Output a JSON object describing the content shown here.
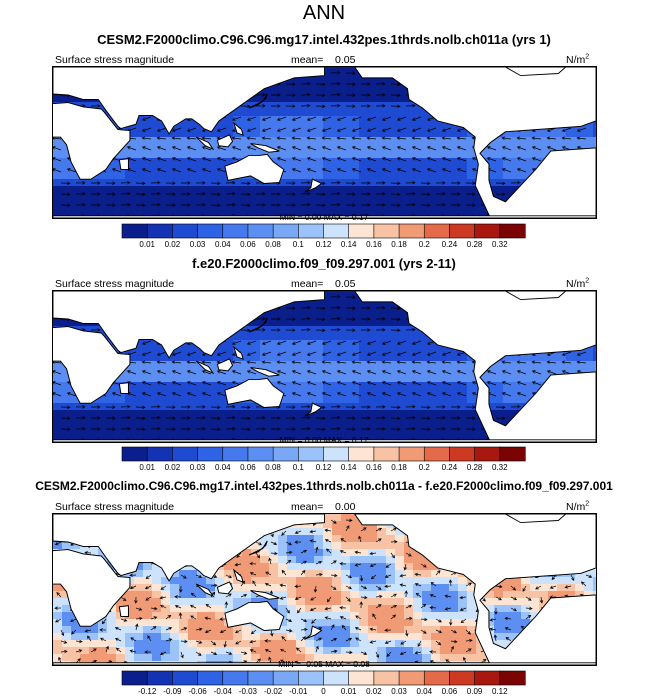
{
  "title": "ANN",
  "panels": [
    {
      "title": "CESM2.F2000climo.C96.C96.mg17.intel.432pes.1thrds.nolb.ch011a (yrs 1)",
      "left_label": "Surface stress magnitude",
      "mean_label": "mean=",
      "mean_value": "0.05",
      "units": "N/m",
      "units_exp": "2",
      "min_max": "MIN =   0.00 MAX =   0.17",
      "colorbar": {
        "ticks": [
          "0.01",
          "0.02",
          "0.03",
          "0.04",
          "0.06",
          "0.08",
          "0.1",
          "0.12",
          "0.14",
          "0.16",
          "0.18",
          "0.2",
          "0.24",
          "0.28",
          "0.32"
        ],
        "colors": [
          "#0a1e8c",
          "#1432b4",
          "#1e4bd2",
          "#2f63e6",
          "#4678ee",
          "#5d8ff2",
          "#79a9f6",
          "#9bc2f9",
          "#cde2fb",
          "#fde4d3",
          "#f8c2a4",
          "#f19b76",
          "#e46a4a",
          "#cd3a24",
          "#a8180e",
          "#7a0403"
        ]
      }
    },
    {
      "title": "f.e20.F2000climo.f09_f09.297.001 (yrs 2-11)",
      "left_label": "Surface stress magnitude",
      "mean_label": "mean=",
      "mean_value": "0.05",
      "units": "N/m",
      "units_exp": "2",
      "min_max": "MIN =   0.00 MAX =   0.17",
      "colorbar": {
        "ticks": [
          "0.01",
          "0.02",
          "0.03",
          "0.04",
          "0.06",
          "0.08",
          "0.1",
          "0.12",
          "0.14",
          "0.16",
          "0.18",
          "0.2",
          "0.24",
          "0.28",
          "0.32"
        ],
        "colors": [
          "#0a1e8c",
          "#1432b4",
          "#1e4bd2",
          "#2f63e6",
          "#4678ee",
          "#5d8ff2",
          "#79a9f6",
          "#9bc2f9",
          "#cde2fb",
          "#fde4d3",
          "#f8c2a4",
          "#f19b76",
          "#e46a4a",
          "#cd3a24",
          "#a8180e",
          "#7a0403"
        ]
      }
    },
    {
      "title": "CESM2.F2000climo.C96.C96.mg17.intel.432pes.1thrds.nolb.ch011a - f.e20.F2000climo.f09_f09.297.001",
      "left_label": "Surface stress magnitude",
      "mean_label": "mean=",
      "mean_value": "0.00",
      "units": "N/m",
      "units_exp": "2",
      "min_max": "MIN =  -0.05 MAX =   0.08",
      "colorbar": {
        "ticks": [
          "-0.12",
          "-0.09",
          "-0.06",
          "-0.04",
          "-0.03",
          "-0.02",
          "-0.01",
          "0",
          "0.01",
          "0.02",
          "0.03",
          "0.04",
          "0.06",
          "0.09",
          "0.12"
        ],
        "colors": [
          "#0a1e8c",
          "#1432b4",
          "#1e4bd2",
          "#2f63e6",
          "#4678ee",
          "#5d8ff2",
          "#79a9f6",
          "#9bc2f9",
          "#cde2fb",
          "#fde4d3",
          "#f8c2a4",
          "#f19b76",
          "#e46a4a",
          "#cd3a24",
          "#a8180e",
          "#7a0403"
        ]
      }
    }
  ],
  "chart_data": [
    {
      "type": "heatmap",
      "title": "CESM2.F2000climo.C96.C96.mg17.intel.432pes.1thrds.nolb.ch011a (yrs 1)",
      "variable": "Surface stress magnitude",
      "units": "N/m2",
      "mean": 0.05,
      "min": 0.0,
      "max": 0.17,
      "colorbar_levels": [
        0.01,
        0.02,
        0.03,
        0.04,
        0.06,
        0.08,
        0.1,
        0.12,
        0.14,
        0.16,
        0.18,
        0.2,
        0.24,
        0.28,
        0.32
      ],
      "overlay": "wind stress vectors"
    },
    {
      "type": "heatmap",
      "title": "f.e20.F2000climo.f09_f09.297.001 (yrs 2-11)",
      "variable": "Surface stress magnitude",
      "units": "N/m2",
      "mean": 0.05,
      "min": 0.0,
      "max": 0.17,
      "colorbar_levels": [
        0.01,
        0.02,
        0.03,
        0.04,
        0.06,
        0.08,
        0.1,
        0.12,
        0.14,
        0.16,
        0.18,
        0.2,
        0.24,
        0.28,
        0.32
      ],
      "overlay": "wind stress vectors"
    },
    {
      "type": "heatmap",
      "title": "CESM2.F2000climo.C96.C96.mg17.intel.432pes.1thrds.nolb.ch011a - f.e20.F2000climo.f09_f09.297.001",
      "variable": "Surface stress magnitude",
      "units": "N/m2",
      "mean": 0.0,
      "min": -0.05,
      "max": 0.08,
      "colorbar_levels": [
        -0.12,
        -0.09,
        -0.06,
        -0.04,
        -0.03,
        -0.02,
        -0.01,
        0,
        0.01,
        0.02,
        0.03,
        0.04,
        0.06,
        0.09,
        0.12
      ],
      "overlay": "wind stress difference vectors"
    }
  ]
}
